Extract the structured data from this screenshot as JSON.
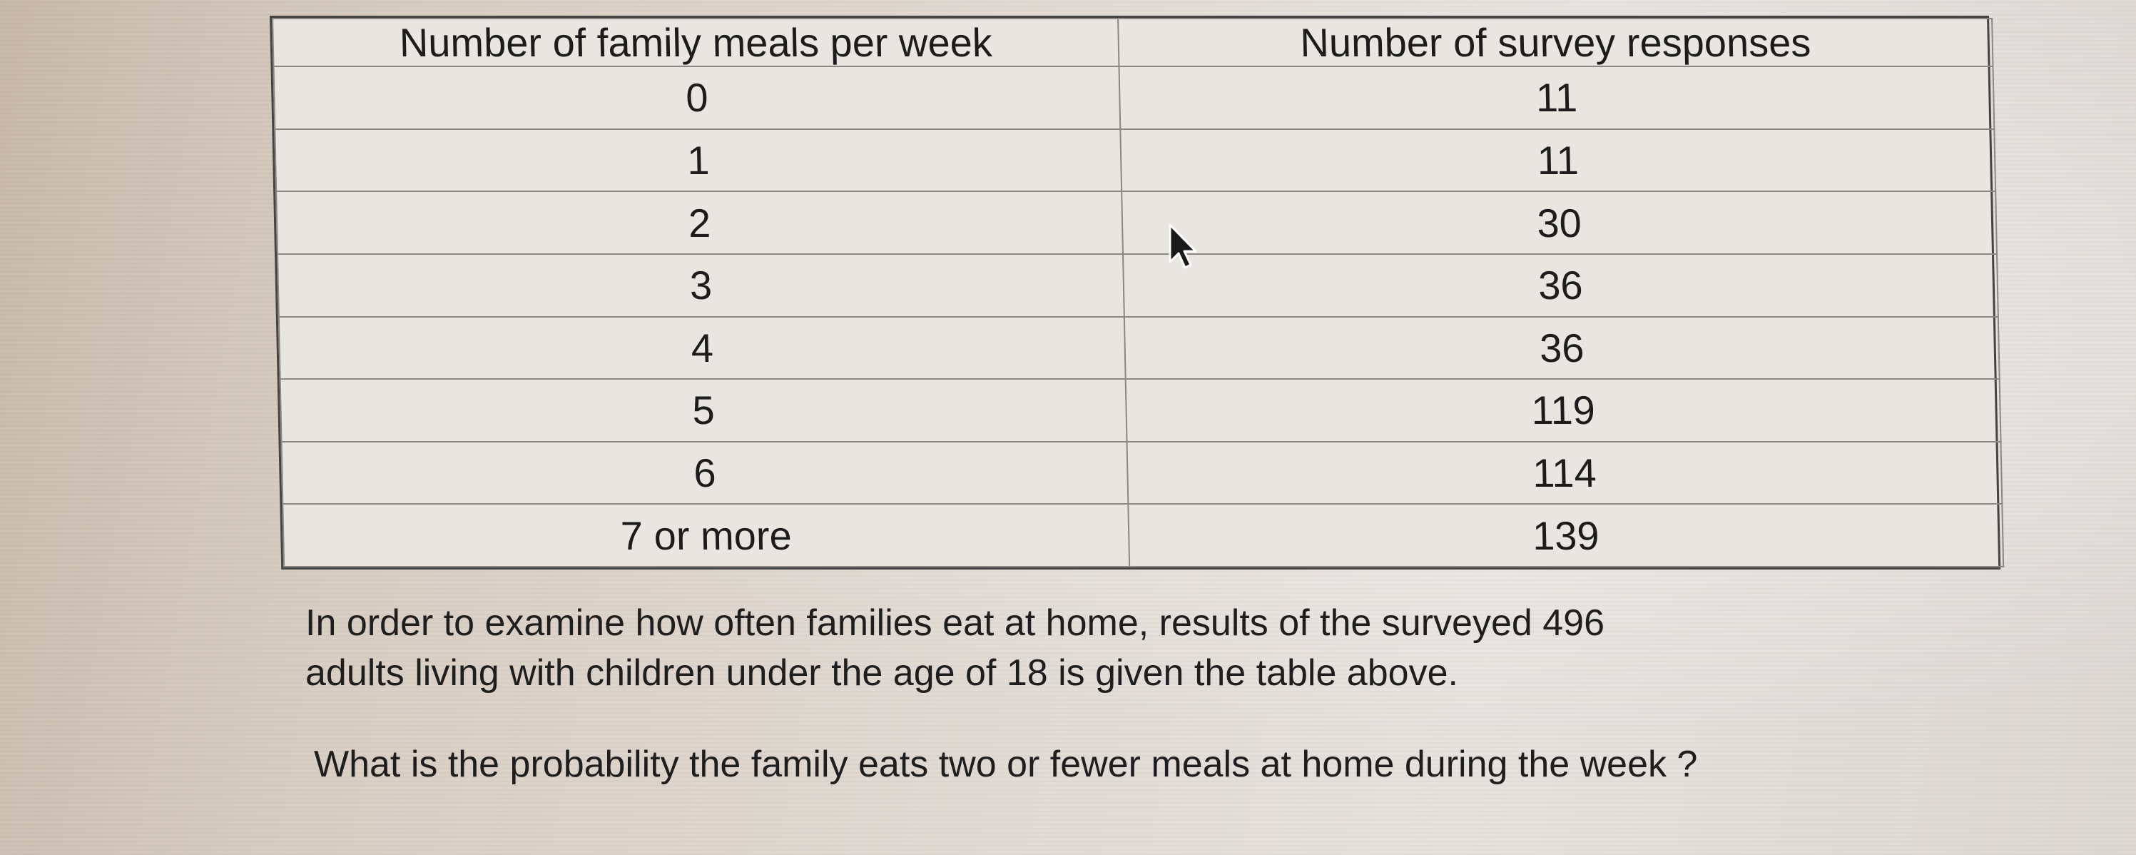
{
  "table": {
    "headers": [
      "Number of family meals per week",
      "Number of survey responses"
    ],
    "rows": [
      [
        "0",
        "11"
      ],
      [
        "1",
        "11"
      ],
      [
        "2",
        "30"
      ],
      [
        "3",
        "36"
      ],
      [
        "4",
        "36"
      ],
      [
        "5",
        "119"
      ],
      [
        "6",
        "114"
      ],
      [
        "7 or more",
        "139"
      ]
    ]
  },
  "text": {
    "intro_line1": "In order to examine how often families eat at home, results of the surveyed 496",
    "intro_line2": "adults living with children under the age of 18 is given the table above.",
    "question": "What is the probability the family eats two or fewer meals at home during the week ?"
  },
  "icons": {
    "cursor": "mouse-pointer-icon"
  }
}
